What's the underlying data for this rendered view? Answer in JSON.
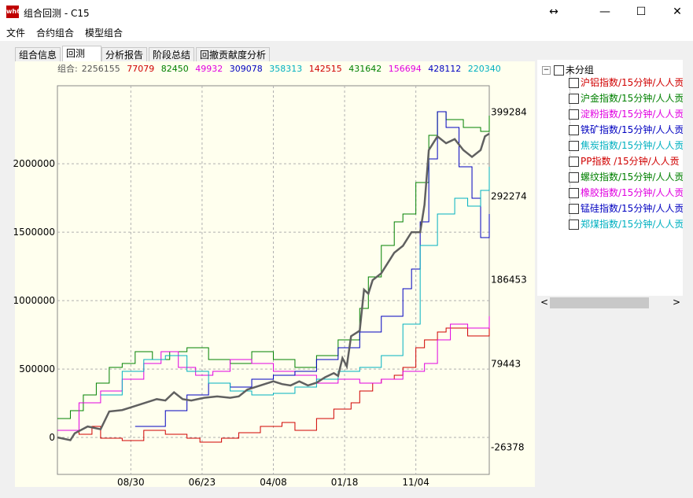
{
  "window": {
    "title": "组合回测 - C15",
    "app_icon_text": "wh6",
    "resize_glyph": "↔",
    "minimize_glyph": "—",
    "maximize_glyph": "☐",
    "close_glyph": "✕"
  },
  "menu": [
    "文件",
    "合约组合",
    "模型组合"
  ],
  "tabs": [
    "组合信息",
    "回测",
    "分析报告",
    "阶段总结",
    "回撤贡献度分析"
  ],
  "active_tab": "回测",
  "summary": {
    "label": "组合:",
    "total": "2256155",
    "values": [
      {
        "text": "77079",
        "color": "#d00000"
      },
      {
        "text": "82450",
        "color": "#008000"
      },
      {
        "text": "49932",
        "color": "#e000e0"
      },
      {
        "text": "309078",
        "color": "#0000c0"
      },
      {
        "text": "358313",
        "color": "#00b0c0"
      },
      {
        "text": "142515",
        "color": "#d00000"
      },
      {
        "text": "431642",
        "color": "#008000"
      },
      {
        "text": "156694",
        "color": "#e000e0"
      },
      {
        "text": "428112",
        "color": "#0000c0"
      },
      {
        "text": "220340",
        "color": "#00b0c0"
      }
    ]
  },
  "tree": {
    "expander": "−",
    "root_label": "未分组",
    "items": [
      {
        "label": "沪铝指数/15分钟/人人贡",
        "color": "#d00000"
      },
      {
        "label": "沪金指数/15分钟/人人贡",
        "color": "#008000"
      },
      {
        "label": "淀粉指数/15分钟/人人贡",
        "color": "#e000e0"
      },
      {
        "label": "铁矿指数/15分钟/人人贡",
        "color": "#0000c0"
      },
      {
        "label": "焦炭指数/15分钟/人人贡",
        "color": "#00b0c0"
      },
      {
        "label": "PP指数  /15分钟/人人贡",
        "color": "#d00000"
      },
      {
        "label": "螺纹指数/15分钟/人人贡",
        "color": "#008000"
      },
      {
        "label": "橡胶指数/15分钟/人人贡",
        "color": "#e000e0"
      },
      {
        "label": "锰硅指数/15分钟/人人贡",
        "color": "#0000c0"
      },
      {
        "label": "郑煤指数/15分钟/人人贡",
        "color": "#00b0c0"
      }
    ],
    "scroll_left_glyph": "<",
    "scroll_right_glyph": ">"
  },
  "chart_data": {
    "type": "line",
    "left_axis": {
      "ticks": [
        0,
        500000,
        1000000,
        1500000,
        2000000
      ],
      "labels": [
        "0",
        "500000",
        "1000000",
        "1500000",
        "2000000"
      ],
      "range": [
        -270000,
        2570000
      ]
    },
    "right_axis": {
      "ticks": [
        -26378,
        79443,
        186453,
        292274,
        399284
      ],
      "labels": [
        "-26378",
        "79443",
        "186453",
        "292274",
        "399284"
      ],
      "range": [
        -61000,
        433000
      ]
    },
    "x_labels": [
      "08/30",
      "06/23",
      "04/08",
      "01/18",
      "11/04"
    ],
    "grid": true,
    "x_range": [
      0,
      100
    ],
    "x_ticks": [
      17,
      33.5,
      50,
      66.5,
      83
    ],
    "portfolio": {
      "axis": "left",
      "color": "#606060",
      "points": [
        [
          0,
          0
        ],
        [
          3,
          -20
        ],
        [
          4,
          30
        ],
        [
          7,
          80
        ],
        [
          10,
          60
        ],
        [
          12,
          190
        ],
        [
          15,
          200
        ],
        [
          17,
          220
        ],
        [
          20,
          250
        ],
        [
          23,
          280
        ],
        [
          25,
          270
        ],
        [
          27,
          330
        ],
        [
          29,
          280
        ],
        [
          31,
          270
        ],
        [
          34,
          290
        ],
        [
          37,
          300
        ],
        [
          40,
          290
        ],
        [
          42,
          300
        ],
        [
          44,
          350
        ],
        [
          47,
          380
        ],
        [
          50,
          410
        ],
        [
          52,
          390
        ],
        [
          54,
          380
        ],
        [
          56,
          410
        ],
        [
          58,
          380
        ],
        [
          60,
          400
        ],
        [
          62,
          440
        ],
        [
          64,
          470
        ],
        [
          65,
          450
        ],
        [
          66,
          580
        ],
        [
          67,
          520
        ],
        [
          68,
          740
        ],
        [
          70,
          780
        ],
        [
          71,
          1080
        ],
        [
          72,
          1050
        ],
        [
          73,
          1150
        ],
        [
          75,
          1200
        ],
        [
          77,
          1300
        ],
        [
          78,
          1350
        ],
        [
          80,
          1400
        ],
        [
          82,
          1500
        ],
        [
          84,
          1500
        ],
        [
          85,
          1700
        ],
        [
          86,
          2100
        ],
        [
          87,
          2150
        ],
        [
          88,
          2200
        ],
        [
          90,
          2150
        ],
        [
          92,
          2180
        ],
        [
          94,
          2100
        ],
        [
          96,
          2050
        ],
        [
          98,
          2100
        ],
        [
          99,
          2200
        ],
        [
          100,
          2220
        ]
      ]
    },
    "series": [
      {
        "axis": "right",
        "color": "#d00000",
        "points": [
          [
            0,
            -5
          ],
          [
            5,
            -10
          ],
          [
            8,
            0
          ],
          [
            10,
            -15
          ],
          [
            15,
            -18
          ],
          [
            20,
            -5
          ],
          [
            25,
            -10
          ],
          [
            30,
            -15
          ],
          [
            33,
            -20
          ],
          [
            38,
            -15
          ],
          [
            42,
            -8
          ],
          [
            47,
            0
          ],
          [
            52,
            5
          ],
          [
            55,
            -5
          ],
          [
            60,
            10
          ],
          [
            64,
            22
          ],
          [
            68,
            30
          ],
          [
            70,
            45
          ],
          [
            73,
            55
          ],
          [
            75,
            60
          ],
          [
            78,
            65
          ],
          [
            80,
            75
          ],
          [
            83,
            100
          ],
          [
            85,
            110
          ],
          [
            88,
            120
          ],
          [
            90,
            125
          ],
          [
            95,
            115
          ],
          [
            100,
            125
          ]
        ]
      },
      {
        "axis": "right",
        "color": "#008000",
        "points": [
          [
            0,
            10
          ],
          [
            3,
            20
          ],
          [
            6,
            40
          ],
          [
            9,
            55
          ],
          [
            12,
            75
          ],
          [
            15,
            80
          ],
          [
            18,
            95
          ],
          [
            22,
            85
          ],
          [
            26,
            95
          ],
          [
            30,
            100
          ],
          [
            35,
            85
          ],
          [
            40,
            80
          ],
          [
            45,
            95
          ],
          [
            50,
            85
          ],
          [
            55,
            75
          ],
          [
            60,
            90
          ],
          [
            65,
            110
          ],
          [
            70,
            150
          ],
          [
            72,
            190
          ],
          [
            75,
            230
          ],
          [
            78,
            260
          ],
          [
            80,
            270
          ],
          [
            83,
            310
          ],
          [
            86,
            370
          ],
          [
            88,
            400
          ],
          [
            90,
            390
          ],
          [
            94,
            380
          ],
          [
            98,
            375
          ],
          [
            100,
            395
          ]
        ]
      },
      {
        "axis": "right",
        "color": "#e000e0",
        "points": [
          [
            0,
            -5
          ],
          [
            5,
            30
          ],
          [
            10,
            45
          ],
          [
            15,
            60
          ],
          [
            20,
            80
          ],
          [
            24,
            95
          ],
          [
            28,
            75
          ],
          [
            32,
            65
          ],
          [
            36,
            70
          ],
          [
            40,
            85
          ],
          [
            45,
            80
          ],
          [
            50,
            70
          ],
          [
            55,
            65
          ],
          [
            60,
            55
          ],
          [
            65,
            60
          ],
          [
            70,
            55
          ],
          [
            75,
            60
          ],
          [
            80,
            70
          ],
          [
            85,
            80
          ],
          [
            88,
            110
          ],
          [
            91,
            130
          ],
          [
            95,
            125
          ],
          [
            100,
            140
          ]
        ]
      },
      {
        "axis": "right",
        "color": "#0000c0",
        "points": [
          [
            18,
            0
          ],
          [
            25,
            20
          ],
          [
            30,
            40
          ],
          [
            35,
            55
          ],
          [
            40,
            50
          ],
          [
            45,
            60
          ],
          [
            50,
            65
          ],
          [
            55,
            70
          ],
          [
            60,
            85
          ],
          [
            65,
            100
          ],
          [
            70,
            120
          ],
          [
            75,
            140
          ],
          [
            80,
            175
          ],
          [
            82,
            200
          ],
          [
            84,
            260
          ],
          [
            86,
            340
          ],
          [
            88,
            400
          ],
          [
            90,
            380
          ],
          [
            93,
            330
          ],
          [
            96,
            290
          ],
          [
            98,
            240
          ],
          [
            100,
            270
          ]
        ]
      },
      {
        "axis": "right",
        "color": "#00b0c0",
        "points": [
          [
            10,
            40
          ],
          [
            15,
            70
          ],
          [
            20,
            85
          ],
          [
            25,
            90
          ],
          [
            30,
            70
          ],
          [
            35,
            55
          ],
          [
            40,
            45
          ],
          [
            45,
            40
          ],
          [
            50,
            42
          ],
          [
            55,
            50
          ],
          [
            60,
            60
          ],
          [
            65,
            70
          ],
          [
            70,
            75
          ],
          [
            75,
            90
          ],
          [
            80,
            130
          ],
          [
            84,
            230
          ],
          [
            88,
            270
          ],
          [
            92,
            290
          ],
          [
            95,
            280
          ],
          [
            98,
            300
          ],
          [
            100,
            330
          ]
        ]
      }
    ]
  }
}
